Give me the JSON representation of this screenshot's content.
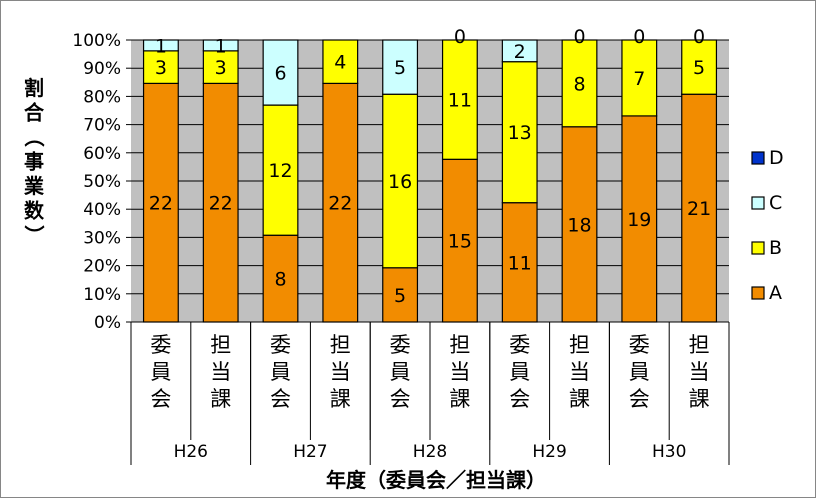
{
  "chart_data": {
    "type": "bar",
    "stacked": "percent",
    "ylabel": "割合（事業数）",
    "xlabel": "年度（委員会／担当課）",
    "yticks": [
      "0%",
      "10%",
      "20%",
      "30%",
      "40%",
      "50%",
      "60%",
      "70%",
      "80%",
      "90%",
      "100%"
    ],
    "ylim": [
      0,
      100
    ],
    "grid": true,
    "legend_position": "right",
    "groups": [
      "H26",
      "H27",
      "H28",
      "H29",
      "H30"
    ],
    "categories": [
      "委員会",
      "担当課",
      "委員会",
      "担当課",
      "委員会",
      "担当課",
      "委員会",
      "担当課",
      "委員会",
      "担当課"
    ],
    "series": [
      {
        "name": "A",
        "color": "#f28c00",
        "values": [
          22,
          22,
          8,
          22,
          5,
          15,
          11,
          18,
          19,
          21
        ]
      },
      {
        "name": "B",
        "color": "#ffff00",
        "values": [
          3,
          3,
          12,
          4,
          16,
          11,
          13,
          8,
          7,
          5
        ]
      },
      {
        "name": "C",
        "color": "#ccffff",
        "values": [
          1,
          1,
          6,
          0,
          5,
          0,
          2,
          0,
          0,
          0
        ]
      },
      {
        "name": "D",
        "color": "#0033cc",
        "values": [
          0,
          0,
          0,
          0,
          0,
          0,
          0,
          0,
          0,
          0
        ]
      }
    ],
    "data_labels_shown": [
      [
        true,
        true,
        true,
        true,
        true,
        true,
        true,
        true,
        true,
        true
      ],
      [
        true,
        true,
        true,
        true,
        true,
        true,
        true,
        true,
        true,
        true
      ],
      [
        true,
        true,
        true,
        false,
        true,
        true,
        true,
        true,
        true,
        true
      ],
      [
        false,
        false,
        false,
        false,
        false,
        false,
        false,
        false,
        false,
        false
      ]
    ],
    "legend_order": [
      "D",
      "C",
      "B",
      "A"
    ],
    "plot_background": "#c0c0c0"
  }
}
